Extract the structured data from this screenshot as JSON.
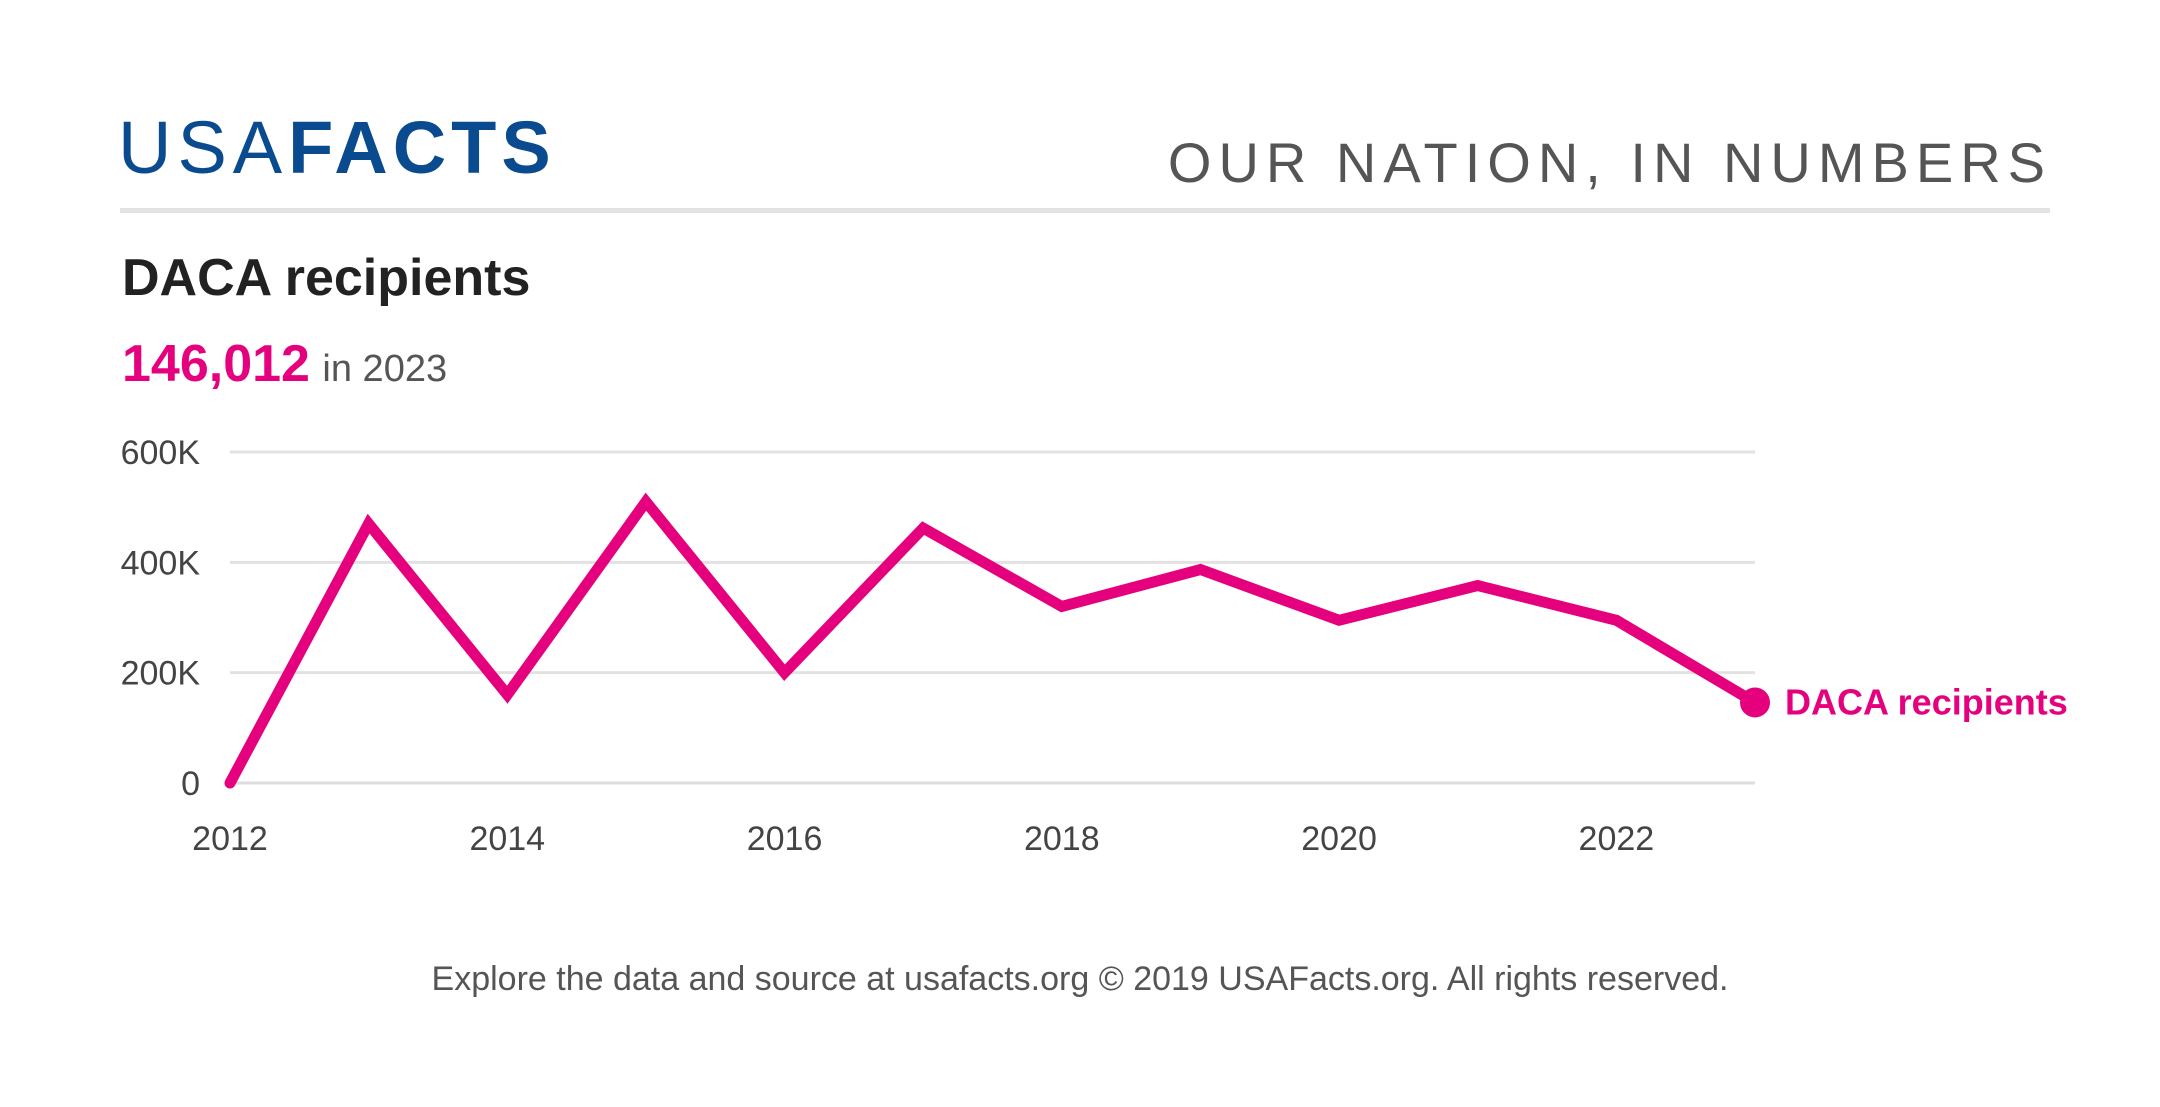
{
  "header": {
    "logo_light": "USA",
    "logo_bold": "FACTS",
    "tagline": "OUR NATION, IN NUMBERS"
  },
  "title": "DACA recipients",
  "headline": {
    "value": "146,012",
    "suffix": "in 2023"
  },
  "footer": "Explore the data and source at usafacts.org © 2019 USAFacts.org. All rights reserved.",
  "colors": {
    "brand": "#0a4a8f",
    "series": "#e5007e",
    "grid": "#e2e2e2",
    "axis_text": "#444444"
  },
  "chart_data": {
    "type": "line",
    "x": [
      2012,
      2013,
      2014,
      2015,
      2016,
      2017,
      2018,
      2019,
      2020,
      2021,
      2022,
      2023
    ],
    "series": [
      {
        "name": "DACA recipients",
        "values": [
          0,
          470000,
          160000,
          510000,
          200000,
          462000,
          320000,
          387000,
          295000,
          358000,
          295000,
          146012
        ]
      }
    ],
    "x_ticks": [
      "2012",
      "2014",
      "2016",
      "2018",
      "2020",
      "2022"
    ],
    "y_ticks": [
      {
        "value": 0,
        "label": "0"
      },
      {
        "value": 200000,
        "label": "200K"
      },
      {
        "value": 400000,
        "label": "400K"
      },
      {
        "value": 600000,
        "label": "600K"
      }
    ],
    "xlim": [
      2012,
      2023
    ],
    "ylim": [
      0,
      600000
    ],
    "grid": true,
    "end_label": "DACA recipients"
  }
}
